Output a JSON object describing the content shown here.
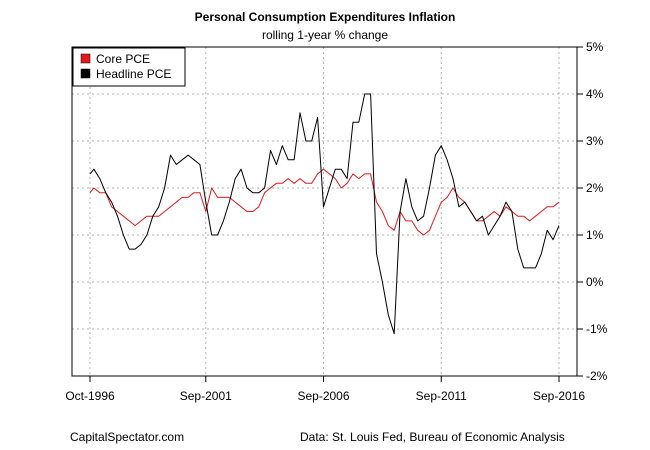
{
  "chart_data": {
    "type": "line",
    "title": "Personal Consumption Expenditures Inflation",
    "subtitle": "rolling 1-year % change",
    "x_axis": {
      "start": "1996-10",
      "end": "2016-09",
      "tick_labels": [
        "Oct-1996",
        "Sep-2001",
        "Sep-2006",
        "Sep-2011",
        "Sep-2016"
      ],
      "tick_dates": [
        "1996-10",
        "2001-09",
        "2006-09",
        "2011-09",
        "2016-09"
      ]
    },
    "y_axis": {
      "ylim": [
        -2,
        5
      ],
      "ticks": [
        -2,
        -1,
        0,
        1,
        2,
        3,
        4,
        5
      ],
      "tick_labels": [
        "-2%",
        "-1%",
        "0%",
        "1%",
        "2%",
        "3%",
        "4%",
        "5%"
      ],
      "side": "right"
    },
    "grid": true,
    "legend": {
      "placement": "top-left"
    },
    "series": [
      {
        "name": "Core PCE",
        "color": "#e31a1c",
        "points": [
          [
            "1996-10",
            1.9
          ],
          [
            "1996-12",
            2.0
          ],
          [
            "1997-03",
            1.9
          ],
          [
            "1997-06",
            1.9
          ],
          [
            "1997-09",
            1.6
          ],
          [
            "1997-12",
            1.5
          ],
          [
            "1998-03",
            1.4
          ],
          [
            "1998-06",
            1.3
          ],
          [
            "1998-09",
            1.2
          ],
          [
            "1998-12",
            1.3
          ],
          [
            "1999-03",
            1.4
          ],
          [
            "1999-06",
            1.4
          ],
          [
            "1999-09",
            1.4
          ],
          [
            "1999-12",
            1.5
          ],
          [
            "2000-03",
            1.6
          ],
          [
            "2000-06",
            1.7
          ],
          [
            "2000-09",
            1.8
          ],
          [
            "2000-12",
            1.8
          ],
          [
            "2001-03",
            1.9
          ],
          [
            "2001-06",
            1.9
          ],
          [
            "2001-09",
            1.5
          ],
          [
            "2001-12",
            2.0
          ],
          [
            "2002-03",
            1.8
          ],
          [
            "2002-06",
            1.8
          ],
          [
            "2002-09",
            1.8
          ],
          [
            "2002-12",
            1.7
          ],
          [
            "2003-03",
            1.6
          ],
          [
            "2003-06",
            1.5
          ],
          [
            "2003-09",
            1.5
          ],
          [
            "2003-12",
            1.6
          ],
          [
            "2004-03",
            1.9
          ],
          [
            "2004-06",
            2.0
          ],
          [
            "2004-09",
            2.1
          ],
          [
            "2004-12",
            2.1
          ],
          [
            "2005-03",
            2.2
          ],
          [
            "2005-06",
            2.1
          ],
          [
            "2005-09",
            2.2
          ],
          [
            "2005-12",
            2.1
          ],
          [
            "2006-03",
            2.1
          ],
          [
            "2006-06",
            2.3
          ],
          [
            "2006-09",
            2.4
          ],
          [
            "2006-12",
            2.3
          ],
          [
            "2007-03",
            2.2
          ],
          [
            "2007-06",
            2.0
          ],
          [
            "2007-09",
            2.1
          ],
          [
            "2007-12",
            2.3
          ],
          [
            "2008-03",
            2.2
          ],
          [
            "2008-06",
            2.3
          ],
          [
            "2008-09",
            2.3
          ],
          [
            "2008-12",
            1.7
          ],
          [
            "2009-03",
            1.5
          ],
          [
            "2009-06",
            1.2
          ],
          [
            "2009-09",
            1.1
          ],
          [
            "2009-12",
            1.5
          ],
          [
            "2010-03",
            1.3
          ],
          [
            "2010-06",
            1.3
          ],
          [
            "2010-09",
            1.1
          ],
          [
            "2010-12",
            1.0
          ],
          [
            "2011-03",
            1.1
          ],
          [
            "2011-06",
            1.4
          ],
          [
            "2011-09",
            1.7
          ],
          [
            "2011-12",
            1.8
          ],
          [
            "2012-03",
            2.0
          ],
          [
            "2012-06",
            1.8
          ],
          [
            "2012-09",
            1.7
          ],
          [
            "2012-12",
            1.5
          ],
          [
            "2013-03",
            1.3
          ],
          [
            "2013-06",
            1.3
          ],
          [
            "2013-09",
            1.4
          ],
          [
            "2013-12",
            1.5
          ],
          [
            "2014-03",
            1.4
          ],
          [
            "2014-06",
            1.6
          ],
          [
            "2014-09",
            1.5
          ],
          [
            "2014-12",
            1.4
          ],
          [
            "2015-03",
            1.4
          ],
          [
            "2015-06",
            1.3
          ],
          [
            "2015-09",
            1.4
          ],
          [
            "2015-12",
            1.5
          ],
          [
            "2016-03",
            1.6
          ],
          [
            "2016-06",
            1.6
          ],
          [
            "2016-09",
            1.7
          ]
        ]
      },
      {
        "name": "Headline PCE",
        "color": "#000000",
        "points": [
          [
            "1996-10",
            2.3
          ],
          [
            "1996-12",
            2.4
          ],
          [
            "1997-03",
            2.2
          ],
          [
            "1997-06",
            1.9
          ],
          [
            "1997-09",
            1.7
          ],
          [
            "1997-12",
            1.4
          ],
          [
            "1998-03",
            1.0
          ],
          [
            "1998-06",
            0.7
          ],
          [
            "1998-09",
            0.7
          ],
          [
            "1998-12",
            0.8
          ],
          [
            "1999-03",
            1.0
          ],
          [
            "1999-06",
            1.4
          ],
          [
            "1999-09",
            1.6
          ],
          [
            "1999-12",
            2.0
          ],
          [
            "2000-03",
            2.7
          ],
          [
            "2000-06",
            2.5
          ],
          [
            "2000-09",
            2.6
          ],
          [
            "2000-12",
            2.7
          ],
          [
            "2001-03",
            2.6
          ],
          [
            "2001-06",
            2.5
          ],
          [
            "2001-09",
            1.7
          ],
          [
            "2001-12",
            1.0
          ],
          [
            "2002-03",
            1.0
          ],
          [
            "2002-06",
            1.3
          ],
          [
            "2002-09",
            1.7
          ],
          [
            "2002-12",
            2.2
          ],
          [
            "2003-03",
            2.4
          ],
          [
            "2003-06",
            2.0
          ],
          [
            "2003-09",
            1.9
          ],
          [
            "2003-12",
            1.9
          ],
          [
            "2004-03",
            2.0
          ],
          [
            "2004-06",
            2.8
          ],
          [
            "2004-09",
            2.5
          ],
          [
            "2004-12",
            2.9
          ],
          [
            "2005-03",
            2.6
          ],
          [
            "2005-06",
            2.6
          ],
          [
            "2005-09",
            3.6
          ],
          [
            "2005-12",
            3.0
          ],
          [
            "2006-03",
            3.0
          ],
          [
            "2006-06",
            3.5
          ],
          [
            "2006-09",
            1.6
          ],
          [
            "2006-12",
            2.0
          ],
          [
            "2007-03",
            2.4
          ],
          [
            "2007-06",
            2.4
          ],
          [
            "2007-09",
            2.2
          ],
          [
            "2007-12",
            3.4
          ],
          [
            "2008-03",
            3.4
          ],
          [
            "2008-06",
            4.0
          ],
          [
            "2008-09",
            4.0
          ],
          [
            "2008-12",
            0.6
          ],
          [
            "2009-03",
            0.0
          ],
          [
            "2009-06",
            -0.7
          ],
          [
            "2009-09",
            -1.1
          ],
          [
            "2009-12",
            1.5
          ],
          [
            "2010-03",
            2.2
          ],
          [
            "2010-06",
            1.6
          ],
          [
            "2010-09",
            1.3
          ],
          [
            "2010-12",
            1.4
          ],
          [
            "2011-03",
            2.0
          ],
          [
            "2011-06",
            2.7
          ],
          [
            "2011-09",
            2.9
          ],
          [
            "2011-12",
            2.6
          ],
          [
            "2012-03",
            2.2
          ],
          [
            "2012-06",
            1.6
          ],
          [
            "2012-09",
            1.7
          ],
          [
            "2012-12",
            1.5
          ],
          [
            "2013-03",
            1.3
          ],
          [
            "2013-06",
            1.4
          ],
          [
            "2013-09",
            1.0
          ],
          [
            "2013-12",
            1.2
          ],
          [
            "2014-03",
            1.4
          ],
          [
            "2014-06",
            1.7
          ],
          [
            "2014-09",
            1.5
          ],
          [
            "2014-12",
            0.7
          ],
          [
            "2015-03",
            0.3
          ],
          [
            "2015-06",
            0.3
          ],
          [
            "2015-09",
            0.3
          ],
          [
            "2015-12",
            0.6
          ],
          [
            "2016-03",
            1.1
          ],
          [
            "2016-06",
            0.9
          ],
          [
            "2016-09",
            1.2
          ]
        ]
      }
    ]
  },
  "footer": {
    "left": "CapitalSpectator.com",
    "right": "Data: St. Louis Fed, Bureau of Economic Analysis"
  }
}
